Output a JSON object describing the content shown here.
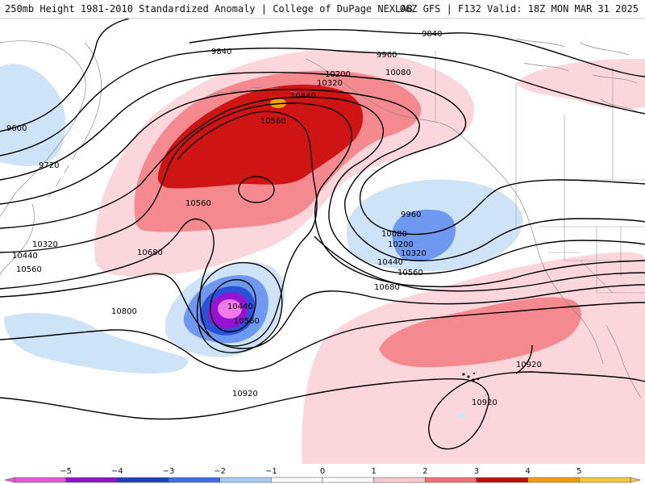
{
  "header": {
    "title_left": "250mb Height 1981-2010 Standardized Anomaly | College of DuPage NEXLAB",
    "title_right": "06Z GFS | F132 Valid: 18Z MON MAR 31 2025"
  },
  "contour_labels": [
    {
      "id": "c9840a",
      "text": "9840"
    },
    {
      "id": "c9840b",
      "text": "9840"
    },
    {
      "id": "c9960a",
      "text": "9960"
    },
    {
      "id": "c10080a",
      "text": "10080"
    },
    {
      "id": "c10200a",
      "text": "10200"
    },
    {
      "id": "c10320a",
      "text": "10320"
    },
    {
      "id": "c10440a",
      "text": "10440"
    },
    {
      "id": "c10560a",
      "text": "10560"
    },
    {
      "id": "c9600",
      "text": "9600"
    },
    {
      "id": "c9720",
      "text": "9720"
    },
    {
      "id": "c10320b",
      "text": "10320"
    },
    {
      "id": "c10440b",
      "text": "10440"
    },
    {
      "id": "c10560b",
      "text": "10560"
    },
    {
      "id": "c10560c",
      "text": "10560"
    },
    {
      "id": "c10680a",
      "text": "10680"
    },
    {
      "id": "c10800",
      "text": "10800"
    },
    {
      "id": "c10440c",
      "text": "10440"
    },
    {
      "id": "c10560d",
      "text": "10560"
    },
    {
      "id": "c9960b",
      "text": "9960"
    },
    {
      "id": "c10080b",
      "text": "10080"
    },
    {
      "id": "c10200b",
      "text": "10200"
    },
    {
      "id": "c10320c",
      "text": "10320"
    },
    {
      "id": "c10440d",
      "text": "10440"
    },
    {
      "id": "c10560e",
      "text": "10560"
    },
    {
      "id": "c10680b",
      "text": "10680"
    },
    {
      "id": "c10920a",
      "text": "10920"
    },
    {
      "id": "c10920b",
      "text": "10920"
    },
    {
      "id": "c10920c",
      "text": "10920"
    }
  ],
  "colorbar": {
    "ticks": [
      "−5",
      "−4",
      "−3",
      "−2",
      "−1",
      "0",
      "1",
      "2",
      "3",
      "4",
      "5"
    ],
    "colors": [
      "#e65ad8",
      "#8f16c8",
      "#1f3fbf",
      "#3f6fe8",
      "#a9cdf3",
      "#ffffff",
      "#ffffff",
      "#fbc9cf",
      "#f27278",
      "#c00f10",
      "#f29f0a",
      "#f5c842"
    ]
  },
  "colors": {
    "anomaly_pos_1": "#fbd7db",
    "anomaly_pos_2": "#f48a8f",
    "anomaly_pos_3": "#cf1414",
    "anomaly_pos_4": "#f5a500",
    "anomaly_neg_1": "#cfe3f8",
    "anomaly_neg_2": "#6f99f0",
    "anomaly_neg_3": "#2a52d6",
    "anomaly_neg_4": "#9414d1",
    "anomaly_neg_5": "#f07aea"
  }
}
